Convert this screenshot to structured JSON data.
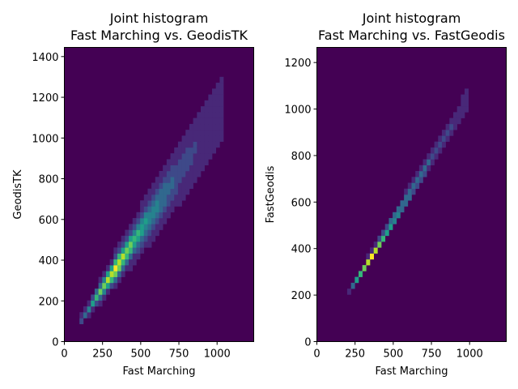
{
  "colors": {
    "background_cell": "#440154",
    "colormap": [
      "#440154",
      "#482878",
      "#3e4989",
      "#31688e",
      "#26828e",
      "#1f9e89",
      "#35b779",
      "#6ece58",
      "#b5de2b",
      "#fde725"
    ]
  },
  "chart_data": [
    {
      "type": "heatmap",
      "title_line1": "Joint histogram",
      "title_line2": "Fast Marching vs. GeodisTK",
      "xlabel": "Fast Marching",
      "ylabel": "GeodisTK",
      "xlim": [
        0,
        1240
      ],
      "ylim": [
        0,
        1445
      ],
      "xticks": [
        "0",
        "250",
        "500",
        "750",
        "1000"
      ],
      "xtick_values": [
        0,
        250,
        500,
        750,
        1000
      ],
      "yticks": [
        "0",
        "200",
        "400",
        "600",
        "800",
        "1000",
        "1200",
        "1400"
      ],
      "ytick_values": [
        0,
        200,
        400,
        600,
        800,
        1000,
        1200,
        1400
      ],
      "bins": 50,
      "slope": 1.13,
      "intercept": -20,
      "spread_base": 10,
      "spread_growth": 0.1,
      "peak_x": 340,
      "x_start": 90,
      "x_end": 1050
    },
    {
      "type": "heatmap",
      "title_line1": "Joint histogram",
      "title_line2": "Fast Marching vs. FastGeodis",
      "xlabel": "Fast Marching",
      "ylabel": "FastGeodis",
      "xlim": [
        0,
        1240
      ],
      "ylim": [
        0,
        1265
      ],
      "xticks": [
        "0",
        "250",
        "500",
        "750",
        "1000"
      ],
      "xtick_values": [
        0,
        250,
        500,
        750,
        1000
      ],
      "yticks": [
        "0",
        "200",
        "400",
        "600",
        "800",
        "1000",
        "1200"
      ],
      "ytick_values": [
        0,
        200,
        400,
        600,
        800,
        1000,
        1200
      ],
      "bins": 50,
      "slope": 1.07,
      "intercept": -15,
      "spread_base": 6,
      "spread_growth": 0.025,
      "peak_x": 360,
      "x_start": 200,
      "x_end": 1000
    }
  ]
}
